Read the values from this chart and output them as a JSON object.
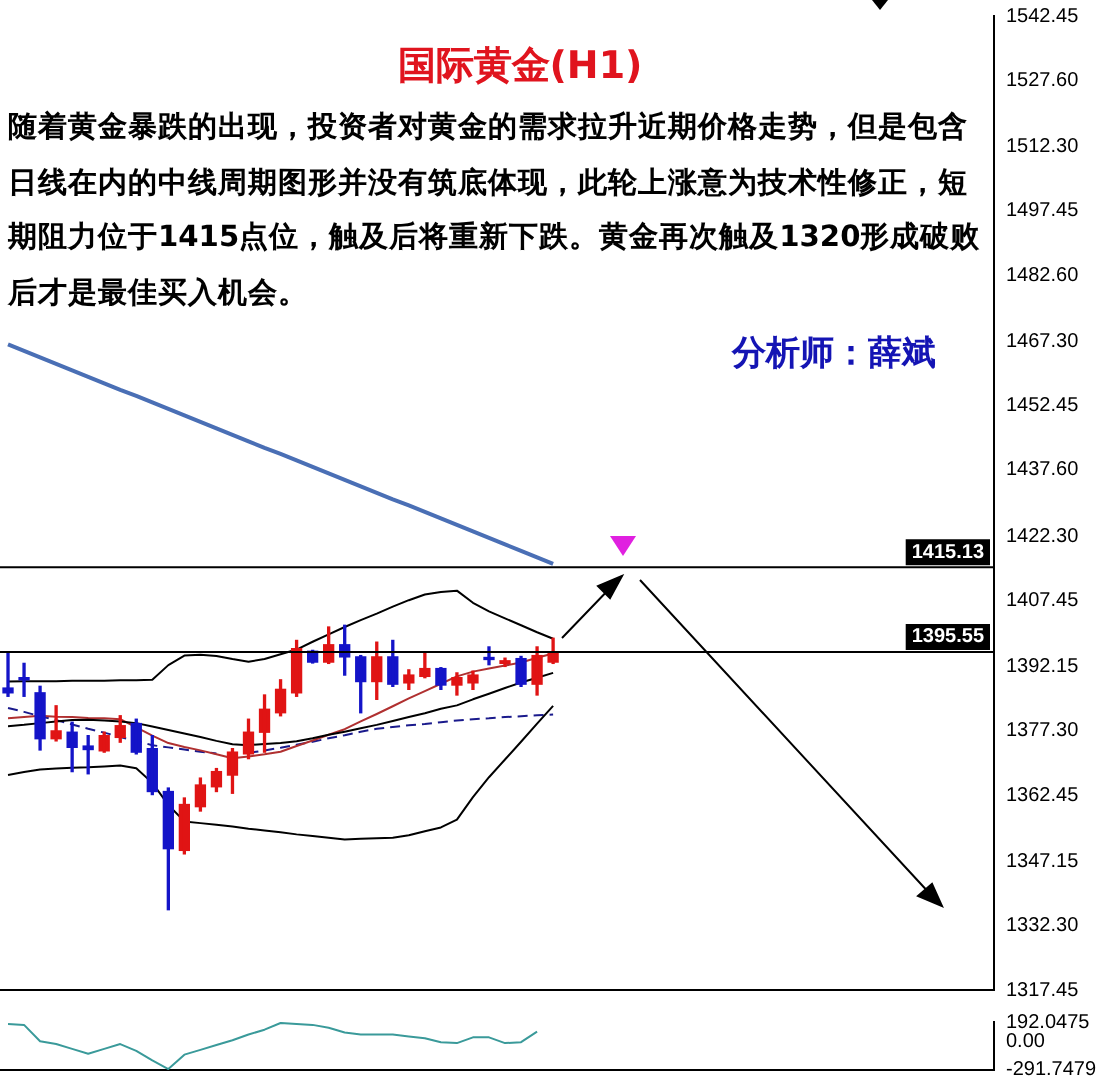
{
  "chart_data": [
    {
      "type": "candlestick",
      "title": "国际黄金(H1)",
      "annotations": [
        "随着黄金暴跌的出现，投资者对黄金的需求拉升近期价格走势，但是包含日线在内的中线周期图形并没有筑底体现，此轮上涨意为技术性修正，短期阻力位于1415点位，触及后将重新下跌。黄金再次触及1320形成破败后才是最佳买入机会。",
        "分析师：薛斌"
      ],
      "categories": [
        null,
        null,
        null,
        null,
        null,
        null,
        null,
        null,
        null,
        null,
        null,
        null,
        null,
        null,
        null,
        null,
        null,
        null,
        null,
        null,
        null,
        null,
        null,
        null,
        null,
        null,
        null,
        null,
        null,
        null,
        null,
        null,
        null,
        null,
        null
      ],
      "ohlc": [
        [
          1387.2,
          1395.2,
          1385.3,
          1386.1
        ],
        [
          1389.6,
          1392.9,
          1385.3,
          1389.1
        ],
        [
          1386.1,
          1387.6,
          1372.9,
          1375.5
        ],
        [
          1375.5,
          1383.1,
          1375.0,
          1377.3
        ],
        [
          1377.0,
          1379.3,
          1367.9,
          1373.5
        ],
        [
          1373.8,
          1376.2,
          1367.4,
          1373.0
        ],
        [
          1372.7,
          1377.0,
          1372.4,
          1376.2
        ],
        [
          1375.8,
          1380.8,
          1374.7,
          1378.5
        ],
        [
          1379.0,
          1380.0,
          1372.0,
          1372.4
        ],
        [
          1373.2,
          1376.2,
          1362.6,
          1363.3
        ],
        [
          1363.3,
          1364.1,
          1336.0,
          1350.1
        ],
        [
          1349.7,
          1361.8,
          1348.9,
          1360.3
        ],
        [
          1359.8,
          1366.4,
          1358.8,
          1364.8
        ],
        [
          1364.4,
          1368.6,
          1363.3,
          1367.9
        ],
        [
          1367.1,
          1373.2,
          1362.9,
          1372.4
        ],
        [
          1372.0,
          1380.0,
          1370.9,
          1377.0
        ],
        [
          1377.0,
          1385.6,
          1372.4,
          1382.3
        ],
        [
          1381.5,
          1389.1,
          1380.8,
          1386.9
        ],
        [
          1386.1,
          1398.2,
          1385.3,
          1396.3
        ],
        [
          1395.7,
          1395.9,
          1393.0,
          1393.2
        ],
        [
          1393.2,
          1401.3,
          1392.9,
          1397.2
        ],
        [
          1397.2,
          1401.7,
          1390.2,
          1394.4
        ],
        [
          1394.4,
          1394.7,
          1381.5,
          1388.7
        ],
        [
          1388.7,
          1397.8,
          1384.6,
          1394.4
        ],
        [
          1394.4,
          1398.2,
          1387.6,
          1388.1
        ],
        [
          1388.4,
          1391.4,
          1386.9,
          1390.2
        ],
        [
          1389.9,
          1395.2,
          1389.6,
          1391.7
        ],
        [
          1391.7,
          1391.9,
          1386.9,
          1387.9
        ],
        [
          1387.9,
          1390.7,
          1385.6,
          1389.6
        ],
        [
          1388.4,
          1391.1,
          1386.9,
          1390.2
        ],
        [
          1394.1,
          1396.7,
          1392.6,
          1393.8
        ],
        [
          1392.9,
          1394.1,
          1392.2,
          1393.5
        ],
        [
          1394.0,
          1394.5,
          1387.6,
          1388.1
        ],
        [
          1388.1,
          1396.7,
          1385.6,
          1394.7
        ],
        [
          1393.2,
          1398.7,
          1392.9,
          1395.5
        ]
      ],
      "colors": [
        "#1414c8",
        "#1414c8",
        "#1414c8",
        "#e01414",
        "#1414c8",
        "#1414c8",
        "#e01414",
        "#e01414",
        "#1414c8",
        "#1414c8",
        "#1414c8",
        "#e01414",
        "#e01414",
        "#e01414",
        "#e01414",
        "#e01414",
        "#e01414",
        "#e01414",
        "#e01414",
        "#1414c8",
        "#e01414",
        "#1414c8",
        "#1414c8",
        "#e01414",
        "#1414c8",
        "#e01414",
        "#e01414",
        "#1414c8",
        "#e01414",
        "#e01414",
        "#1414c8",
        "#e01414",
        "#1414c8",
        "#e01414",
        "#e01414"
      ],
      "series": [
        {
          "type": "line",
          "color": "#4a6fb5",
          "values": [
            1466.6,
            1465.1,
            1463.6,
            1462.1,
            1460.6,
            1459.1,
            1457.6,
            1456.1,
            1454.7,
            1453.2,
            1451.7,
            1450.2,
            1448.7,
            1447.2,
            1445.7,
            1444.2,
            1442.7,
            1441.3,
            1439.8,
            1438.3,
            1436.8,
            1435.3,
            1433.8,
            1432.3,
            1430.8,
            1429.4,
            1427.9,
            1426.4,
            1424.9,
            1423.4,
            1421.9,
            1420.4,
            1418.9,
            1417.4,
            1415.9
          ]
        },
        {
          "type": "line",
          "color": "#000000",
          "values": [
            1388.7,
            1388.8,
            1388.8,
            1388.8,
            1388.9,
            1388.9,
            1388.9,
            1389.0,
            1389.0,
            1389.1,
            1392.5,
            1394.7,
            1394.9,
            1394.6,
            1393.9,
            1393.3,
            1393.9,
            1395.0,
            1396.1,
            1397.9,
            1399.6,
            1401.3,
            1402.9,
            1404.4,
            1406.0,
            1407.5,
            1408.8,
            1409.4,
            1409.7,
            1406.9,
            1404.9,
            1403.3,
            1401.7,
            1400.1,
            1398.6
          ]
        },
        {
          "type": "line",
          "color": "#000000",
          "values": [
            1378.4,
            1378.7,
            1379.1,
            1379.5,
            1379.8,
            1379.9,
            1379.7,
            1379.5,
            1379.1,
            1378.3,
            1377.5,
            1376.7,
            1375.9,
            1375.0,
            1374.2,
            1374.0,
            1374.3,
            1374.5,
            1374.9,
            1375.6,
            1376.4,
            1377.1,
            1377.9,
            1378.7,
            1379.6,
            1380.5,
            1381.4,
            1382.4,
            1383.2,
            1384.6,
            1385.9,
            1387.2,
            1388.5,
            1389.6,
            1390.7
          ]
        },
        {
          "type": "line",
          "color": "#000000",
          "values": [
            1367.1,
            1367.8,
            1368.4,
            1368.6,
            1368.8,
            1368.9,
            1369.1,
            1369.3,
            1368.7,
            1365.3,
            1360.2,
            1356.4,
            1356.0,
            1355.6,
            1355.2,
            1354.7,
            1354.3,
            1353.9,
            1353.4,
            1353.0,
            1352.6,
            1352.2,
            1352.4,
            1352.5,
            1352.6,
            1353.2,
            1354.1,
            1355.0,
            1356.8,
            1362.0,
            1366.6,
            1370.7,
            1374.8,
            1379.0,
            1383.1
          ]
        },
        {
          "type": "line",
          "color": "#b03030",
          "values": [
            1380.2,
            1380.5,
            1380.8,
            1380.6,
            1380.5,
            1380.3,
            1380.2,
            1380.0,
            1378.1,
            1376.2,
            1374.5,
            1373.6,
            1372.8,
            1371.9,
            1371.0,
            1371.4,
            1371.9,
            1372.5,
            1373.8,
            1375.1,
            1376.4,
            1377.7,
            1379.5,
            1381.2,
            1383.0,
            1384.8,
            1386.5,
            1388.2,
            1389.9,
            1391.0,
            1391.7,
            1392.4,
            1393.1,
            1394.2,
            1395.2
          ]
        },
        {
          "type": "line",
          "color": "#1a1a8c",
          "line_style": "dashed",
          "values": [
            1382.6,
            1381.7,
            1380.7,
            1379.8,
            1378.8,
            1377.8,
            1376.9,
            1375.9,
            1375.0,
            1374.0,
            1373.5,
            1373.0,
            1372.5,
            1372.1,
            null,
            1372.2,
            1372.8,
            1373.4,
            1374.1,
            1374.8,
            1375.6,
            1376.3,
            1377.1,
            1377.8,
            1378.2,
            1378.6,
            1378.9,
            1379.3,
            1379.7,
            1380.0,
            1380.2,
            1380.5,
            1380.7,
            1380.9,
            1381.1
          ]
        }
      ],
      "ylim": [
        1317.45,
        1542.45
      ],
      "yticks": [
        1542.45,
        {
          "value": 1527.6,
          "label": "1527.60"
        },
        {
          "value": 1512.3,
          "label": "1512.30"
        },
        1497.45,
        {
          "value": 1482.6,
          "label": "1482.60"
        },
        {
          "value": 1467.3,
          "label": "1467.30"
        },
        1452.45,
        {
          "value": 1437.6,
          "label": "1437.60"
        },
        {
          "value": 1422.3,
          "label": "1422.30"
        },
        1407.45,
        {
          "value": 1392.15,
          "label": "1392.15"
        },
        {
          "value": 1377.3,
          "label": "1377.30"
        },
        1362.45,
        {
          "value": 1347.15,
          "label": "1347.15"
        },
        {
          "value": 1332.3,
          "label": "1332.30"
        },
        1317.45
      ],
      "ref_lines": [
        {
          "axis": "y",
          "value": 1415.13,
          "label": "1415.13",
          "color": "#000000"
        },
        {
          "axis": "y",
          "value": 1395.55,
          "label": "1395.55",
          "color": "#000000"
        }
      ],
      "tick_labels": "y",
      "marker": "none",
      "legend": false
    },
    {
      "type": "line",
      "categories": [
        null,
        null,
        null,
        null,
        null,
        null,
        null,
        null,
        null,
        null,
        null,
        null,
        null,
        null,
        null,
        null,
        null,
        null,
        null,
        null,
        null,
        null,
        null,
        null,
        null,
        null,
        null,
        null,
        null,
        null,
        null,
        null,
        null,
        null,
        null
      ],
      "values": [
        180,
        170,
        0,
        -30,
        -80,
        -130,
        -80,
        -30,
        -100,
        -200,
        -290,
        -140,
        -90,
        -40,
        10,
        70,
        120,
        190,
        180,
        170,
        140,
        90,
        70,
        70,
        70,
        50,
        30,
        -10,
        -20,
        40,
        40,
        -20,
        -10,
        100,
        null
      ],
      "color": "#3a9a9a",
      "ylim": [
        -300,
        200
      ],
      "yticks": [
        192.0475,
        {
          "value": 0,
          "label": "0.00"
        },
        -291.7479
      ],
      "tick_labels": "y",
      "marker": "none",
      "legend": false
    }
  ]
}
